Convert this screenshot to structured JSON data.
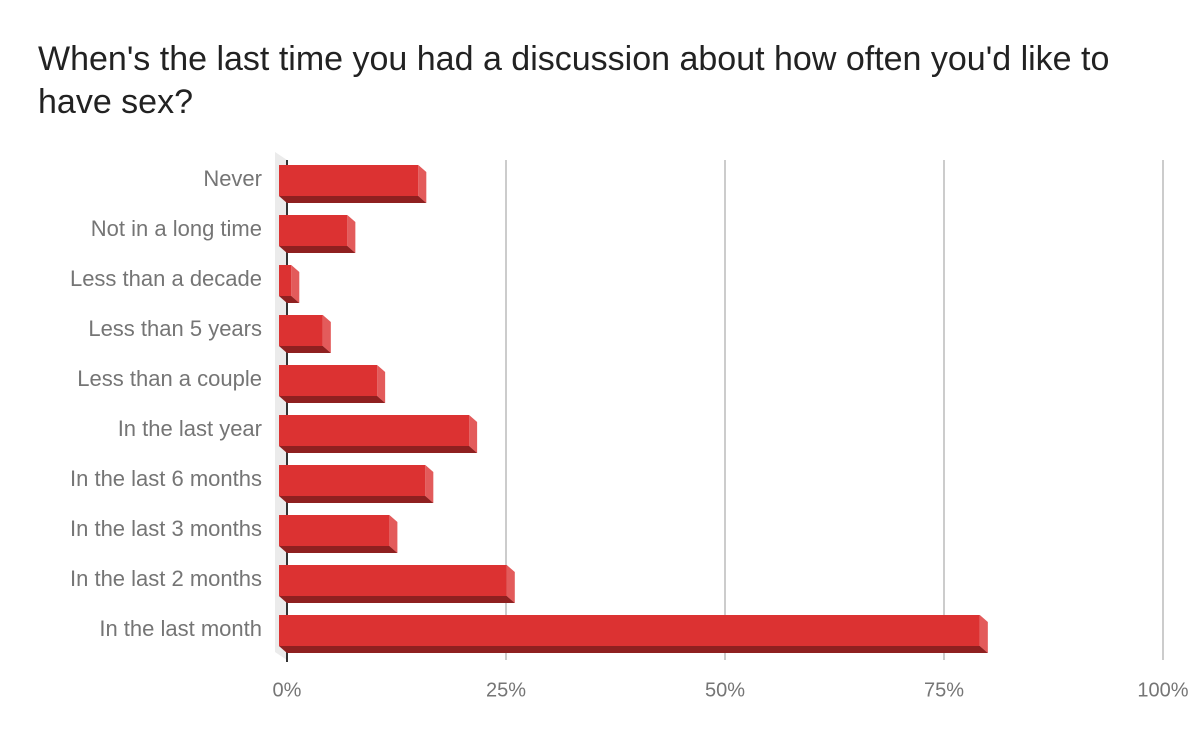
{
  "chart_data": {
    "type": "bar",
    "orientation": "horizontal",
    "title": "When's the last time you had a discussion about how often you'd like to have sex?",
    "categories": [
      "Never",
      "Not in a long time",
      "Less than a decade",
      "Less than 5 years",
      "Less than a couple",
      "In the last year",
      "In the last 6 months",
      "In the last 3 months",
      "In the last 2 months",
      "In the last month"
    ],
    "values": [
      15.9,
      7.8,
      1.4,
      5.0,
      11.2,
      21.7,
      16.7,
      12.6,
      26.0,
      80.0
    ],
    "color": "#dc3232",
    "xlim": [
      0,
      100
    ],
    "xticks": [
      {
        "value": 0,
        "label": "0%"
      },
      {
        "value": 25,
        "label": "25%"
      },
      {
        "value": 50,
        "label": "50%"
      },
      {
        "value": 75,
        "label": "75%"
      },
      {
        "value": 100,
        "label": "100%"
      }
    ],
    "grid": true
  }
}
